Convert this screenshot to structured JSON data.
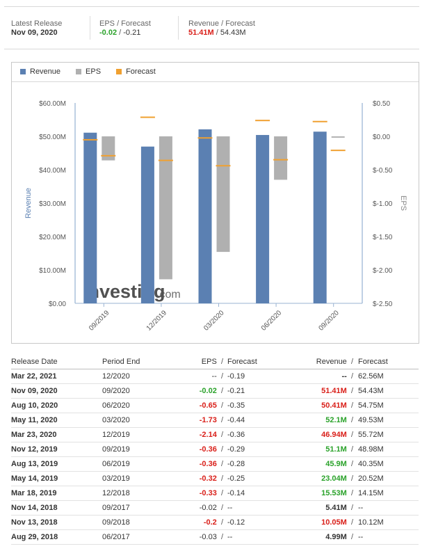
{
  "summary": {
    "latest": {
      "label": "Latest Release",
      "value": "Nov 09, 2020"
    },
    "eps": {
      "label": "EPS / Forecast",
      "actual": "-0.02",
      "forecast": "-0.21"
    },
    "revenue": {
      "label": "Revenue / Forecast",
      "actual": "51.41M",
      "forecast": "54.43M"
    }
  },
  "colors": {
    "revenue": "#5b80b2",
    "eps": "#b0b0b0",
    "forecast": "#f0a030",
    "positive": "#2aa22a",
    "negative": "#d91e18"
  },
  "chart_data": {
    "type": "bar",
    "legend": [
      "Revenue",
      "EPS",
      "Forecast"
    ],
    "legend_placement": "top-left",
    "categories": [
      "09/2019",
      "12/2019",
      "03/2020",
      "06/2020",
      "09/2020"
    ],
    "series": [
      {
        "name": "Revenue",
        "axis": "left",
        "values": [
          51.1,
          46.94,
          52.1,
          50.41,
          51.41
        ],
        "forecast": [
          48.98,
          55.72,
          49.53,
          54.75,
          54.43
        ]
      },
      {
        "name": "EPS",
        "axis": "right",
        "values": [
          -0.36,
          -2.14,
          -1.73,
          -0.65,
          -0.02
        ],
        "forecast": [
          -0.29,
          -0.36,
          -0.44,
          -0.35,
          -0.21
        ]
      }
    ],
    "ylabel": "Revenue",
    "y2label": "EPS",
    "ylim": [
      0,
      60
    ],
    "y2lim": [
      -2.5,
      0.5
    ],
    "yticks": [
      "$0.00",
      "$10.00M",
      "$20.00M",
      "$30.00M",
      "$40.00M",
      "$50.00M",
      "$60.00M"
    ],
    "y2ticks": [
      "$-2.50",
      "$-2.00",
      "$-1.50",
      "$-1.00",
      "$-0.50",
      "$0.00",
      "$0.50"
    ],
    "watermark": "Investing.com",
    "grid": false
  },
  "table": {
    "headers": {
      "date": "Release Date",
      "period": "Period End",
      "eps": "EPS",
      "eps_forecast": "Forecast",
      "revenue": "Revenue",
      "revenue_forecast": "Forecast"
    },
    "slash": "/",
    "rows": [
      {
        "date": "Mar 22, 2021",
        "period": "12/2020",
        "eps": "--",
        "eps_c": "",
        "epsf": "-0.19",
        "rev": "--",
        "rev_c": "",
        "revf": "62.56M"
      },
      {
        "date": "Nov 09, 2020",
        "period": "09/2020",
        "eps": "-0.02",
        "eps_c": "pos",
        "epsf": "-0.21",
        "rev": "51.41M",
        "rev_c": "neg",
        "revf": "54.43M"
      },
      {
        "date": "Aug 10, 2020",
        "period": "06/2020",
        "eps": "-0.65",
        "eps_c": "neg",
        "epsf": "-0.35",
        "rev": "50.41M",
        "rev_c": "neg",
        "revf": "54.75M"
      },
      {
        "date": "May 11, 2020",
        "period": "03/2020",
        "eps": "-1.73",
        "eps_c": "neg",
        "epsf": "-0.44",
        "rev": "52.1M",
        "rev_c": "pos",
        "revf": "49.53M"
      },
      {
        "date": "Mar 23, 2020",
        "period": "12/2019",
        "eps": "-2.14",
        "eps_c": "neg",
        "epsf": "-0.36",
        "rev": "46.94M",
        "rev_c": "neg",
        "revf": "55.72M"
      },
      {
        "date": "Nov 12, 2019",
        "period": "09/2019",
        "eps": "-0.36",
        "eps_c": "neg",
        "epsf": "-0.29",
        "rev": "51.1M",
        "rev_c": "pos",
        "revf": "48.98M"
      },
      {
        "date": "Aug 13, 2019",
        "period": "06/2019",
        "eps": "-0.36",
        "eps_c": "neg",
        "epsf": "-0.28",
        "rev": "45.9M",
        "rev_c": "pos",
        "revf": "40.35M"
      },
      {
        "date": "May 14, 2019",
        "period": "03/2019",
        "eps": "-0.32",
        "eps_c": "neg",
        "epsf": "-0.25",
        "rev": "23.04M",
        "rev_c": "pos",
        "revf": "20.52M"
      },
      {
        "date": "Mar 18, 2019",
        "period": "12/2018",
        "eps": "-0.33",
        "eps_c": "neg",
        "epsf": "-0.14",
        "rev": "15.53M",
        "rev_c": "pos",
        "revf": "14.15M"
      },
      {
        "date": "Nov 14, 2018",
        "period": "09/2017",
        "eps": "-0.02",
        "eps_c": "",
        "epsf": "--",
        "rev": "5.41M",
        "rev_c": "",
        "revf": "--"
      },
      {
        "date": "Nov 13, 2018",
        "period": "09/2018",
        "eps": "-0.2",
        "eps_c": "neg",
        "epsf": "-0.12",
        "rev": "10.05M",
        "rev_c": "neg",
        "revf": "10.12M"
      },
      {
        "date": "Aug 29, 2018",
        "period": "06/2017",
        "eps": "-0.03",
        "eps_c": "",
        "epsf": "--",
        "rev": "4.99M",
        "rev_c": "",
        "revf": "--"
      }
    ]
  }
}
